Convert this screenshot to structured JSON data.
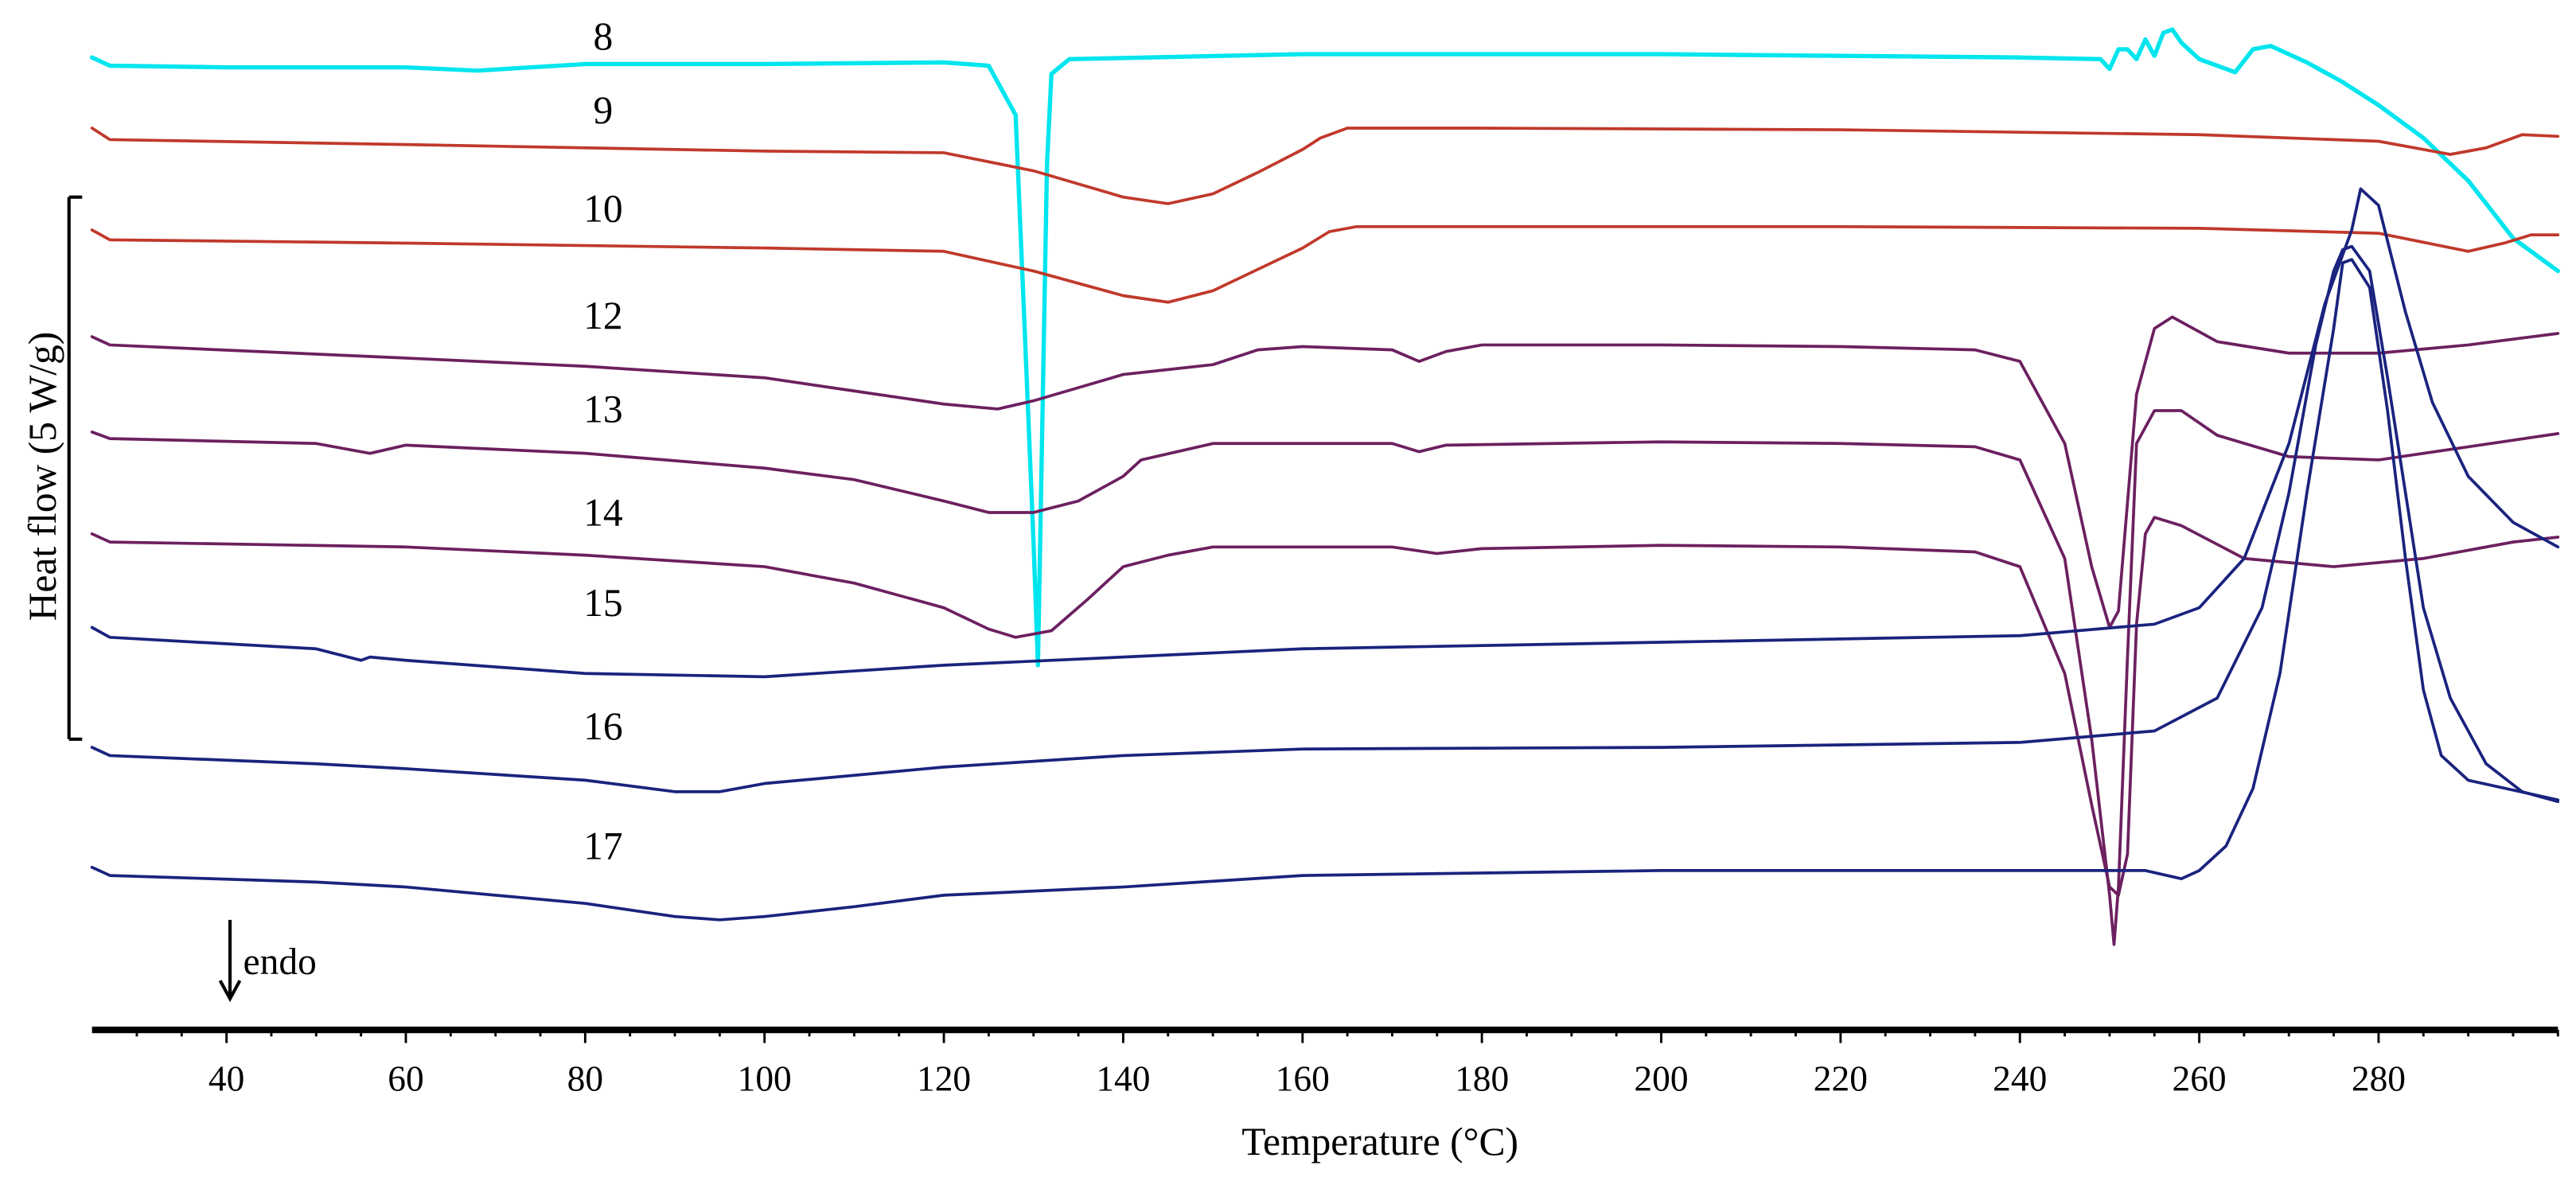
{
  "chart_data": {
    "type": "line",
    "title": "",
    "xlabel": "Temperature (°C)",
    "ylabel": "Heat flow (5 W/g)",
    "xlim": [
      25,
      300
    ],
    "x_ticks": [
      "40",
      "60",
      "80",
      "100",
      "120",
      "140",
      "160",
      "180",
      "200",
      "220",
      "240",
      "260",
      "280"
    ],
    "grid": false,
    "annotations": {
      "endo": "endo",
      "endo_direction": "down"
    },
    "series": [
      {
        "name": "8",
        "color": "#00e5ee",
        "offset": 40,
        "points": [
          [
            25,
            35
          ],
          [
            27,
            40
          ],
          [
            40,
            41
          ],
          [
            60,
            41
          ],
          [
            68,
            43
          ],
          [
            80,
            39
          ],
          [
            100,
            39
          ],
          [
            120,
            38
          ],
          [
            125,
            40
          ],
          [
            128,
            70
          ],
          [
            129,
            200
          ],
          [
            130,
            330
          ],
          [
            130.5,
            405
          ],
          [
            131,
            250
          ],
          [
            131.5,
            100
          ],
          [
            132,
            45
          ],
          [
            134,
            36
          ],
          [
            160,
            33
          ],
          [
            200,
            33
          ],
          [
            240,
            35
          ],
          [
            249,
            36
          ],
          [
            250,
            42
          ],
          [
            251,
            30
          ],
          [
            252,
            30
          ],
          [
            253,
            36
          ],
          [
            254,
            24
          ],
          [
            255,
            34
          ],
          [
            256,
            20
          ],
          [
            257,
            18
          ],
          [
            258,
            26
          ],
          [
            260,
            36
          ],
          [
            262,
            40
          ],
          [
            264,
            44
          ],
          [
            266,
            30
          ],
          [
            268,
            28
          ],
          [
            272,
            38
          ],
          [
            276,
            50
          ],
          [
            280,
            64
          ],
          [
            285,
            84
          ],
          [
            290,
            110
          ],
          [
            295,
            145
          ],
          [
            300,
            165
          ]
        ]
      },
      {
        "name": "9",
        "color": "#c0392b",
        "offset": 85,
        "points": [
          [
            25,
            78
          ],
          [
            27,
            85
          ],
          [
            60,
            88
          ],
          [
            100,
            92
          ],
          [
            120,
            93
          ],
          [
            130,
            104
          ],
          [
            140,
            120
          ],
          [
            145,
            124
          ],
          [
            150,
            118
          ],
          [
            155,
            105
          ],
          [
            160,
            91
          ],
          [
            162,
            84
          ],
          [
            165,
            78
          ],
          [
            180,
            78
          ],
          [
            220,
            79
          ],
          [
            260,
            82
          ],
          [
            280,
            86
          ],
          [
            288,
            94
          ],
          [
            292,
            90
          ],
          [
            296,
            82
          ],
          [
            300,
            83
          ]
        ]
      },
      {
        "name": "10",
        "color": "#c0392b",
        "offset": 145,
        "points": [
          [
            25,
            140
          ],
          [
            27,
            146
          ],
          [
            60,
            148
          ],
          [
            100,
            151
          ],
          [
            120,
            153
          ],
          [
            130,
            165
          ],
          [
            140,
            180
          ],
          [
            145,
            184
          ],
          [
            150,
            177
          ],
          [
            155,
            164
          ],
          [
            160,
            151
          ],
          [
            163,
            141
          ],
          [
            166,
            138
          ],
          [
            180,
            138
          ],
          [
            220,
            138
          ],
          [
            260,
            139
          ],
          [
            280,
            142
          ],
          [
            290,
            153
          ],
          [
            294,
            148
          ],
          [
            297,
            143
          ],
          [
            300,
            143
          ]
        ]
      },
      {
        "name": "12",
        "color": "#6c2060",
        "offset": 210,
        "points": [
          [
            25,
            205
          ],
          [
            27,
            210
          ],
          [
            60,
            218
          ],
          [
            80,
            223
          ],
          [
            100,
            230
          ],
          [
            110,
            238
          ],
          [
            120,
            246
          ],
          [
            126,
            249
          ],
          [
            130,
            244
          ],
          [
            135,
            236
          ],
          [
            140,
            228
          ],
          [
            145,
            225
          ],
          [
            150,
            222
          ],
          [
            155,
            213
          ],
          [
            160,
            211
          ],
          [
            170,
            213
          ],
          [
            173,
            220
          ],
          [
            176,
            214
          ],
          [
            180,
            210
          ],
          [
            200,
            210
          ],
          [
            220,
            211
          ],
          [
            235,
            213
          ],
          [
            240,
            220
          ],
          [
            245,
            270
          ],
          [
            248,
            345
          ],
          [
            250,
            382
          ],
          [
            251,
            372
          ],
          [
            253,
            240
          ],
          [
            255,
            200
          ],
          [
            257,
            193
          ],
          [
            262,
            208
          ],
          [
            270,
            215
          ],
          [
            280,
            215
          ],
          [
            290,
            210
          ],
          [
            300,
            203
          ]
        ]
      },
      {
        "name": "13",
        "color": "#6c2060",
        "offset": 267,
        "points": [
          [
            25,
            263
          ],
          [
            27,
            267
          ],
          [
            50,
            270
          ],
          [
            56,
            276
          ],
          [
            60,
            271
          ],
          [
            80,
            276
          ],
          [
            100,
            285
          ],
          [
            110,
            292
          ],
          [
            120,
            305
          ],
          [
            125,
            312
          ],
          [
            130,
            312
          ],
          [
            135,
            305
          ],
          [
            140,
            290
          ],
          [
            142,
            280
          ],
          [
            150,
            270
          ],
          [
            170,
            270
          ],
          [
            173,
            275
          ],
          [
            176,
            271
          ],
          [
            200,
            269
          ],
          [
            220,
            270
          ],
          [
            235,
            272
          ],
          [
            240,
            280
          ],
          [
            245,
            340
          ],
          [
            248,
            450
          ],
          [
            250,
            545
          ],
          [
            250.5,
            575
          ],
          [
            251,
            540
          ],
          [
            252,
            400
          ],
          [
            253,
            270
          ],
          [
            255,
            250
          ],
          [
            258,
            250
          ],
          [
            262,
            265
          ],
          [
            270,
            278
          ],
          [
            280,
            280
          ],
          [
            290,
            272
          ],
          [
            300,
            264
          ]
        ]
      },
      {
        "name": "14",
        "color": "#6c2060",
        "offset": 330,
        "points": [
          [
            25,
            325
          ],
          [
            27,
            330
          ],
          [
            60,
            333
          ],
          [
            80,
            338
          ],
          [
            100,
            345
          ],
          [
            110,
            355
          ],
          [
            120,
            370
          ],
          [
            125,
            383
          ],
          [
            128,
            388
          ],
          [
            132,
            384
          ],
          [
            136,
            365
          ],
          [
            140,
            345
          ],
          [
            145,
            338
          ],
          [
            150,
            333
          ],
          [
            170,
            333
          ],
          [
            175,
            337
          ],
          [
            180,
            334
          ],
          [
            200,
            332
          ],
          [
            220,
            333
          ],
          [
            235,
            336
          ],
          [
            240,
            345
          ],
          [
            245,
            410
          ],
          [
            248,
            490
          ],
          [
            250,
            540
          ],
          [
            251,
            545
          ],
          [
            252,
            520
          ],
          [
            253,
            380
          ],
          [
            254,
            325
          ],
          [
            255,
            315
          ],
          [
            258,
            320
          ],
          [
            265,
            340
          ],
          [
            275,
            345
          ],
          [
            285,
            340
          ],
          [
            295,
            330
          ],
          [
            300,
            327
          ]
        ]
      },
      {
        "name": "15",
        "color": "#1a237e",
        "offset": 385,
        "points": [
          [
            25,
            382
          ],
          [
            27,
            388
          ],
          [
            50,
            395
          ],
          [
            55,
            402
          ],
          [
            56,
            400
          ],
          [
            60,
            402
          ],
          [
            80,
            410
          ],
          [
            100,
            412
          ],
          [
            120,
            405
          ],
          [
            140,
            400
          ],
          [
            160,
            395
          ],
          [
            200,
            391
          ],
          [
            240,
            387
          ],
          [
            255,
            380
          ],
          [
            260,
            370
          ],
          [
            265,
            340
          ],
          [
            270,
            270
          ],
          [
            274,
            185
          ],
          [
            277,
            140
          ],
          [
            278,
            115
          ],
          [
            280,
            125
          ],
          [
            283,
            190
          ],
          [
            286,
            245
          ],
          [
            290,
            290
          ],
          [
            295,
            318
          ],
          [
            300,
            333
          ]
        ]
      },
      {
        "name": "16",
        "color": "#1a237e",
        "offset": 460,
        "points": [
          [
            25,
            455
          ],
          [
            27,
            460
          ],
          [
            50,
            465
          ],
          [
            60,
            468
          ],
          [
            80,
            475
          ],
          [
            90,
            482
          ],
          [
            95,
            482
          ],
          [
            100,
            477
          ],
          [
            120,
            467
          ],
          [
            140,
            460
          ],
          [
            160,
            456
          ],
          [
            200,
            455
          ],
          [
            240,
            452
          ],
          [
            255,
            445
          ],
          [
            262,
            425
          ],
          [
            267,
            370
          ],
          [
            270,
            300
          ],
          [
            273,
            210
          ],
          [
            275,
            165
          ],
          [
            276,
            152
          ],
          [
            277,
            150
          ],
          [
            279,
            165
          ],
          [
            281,
            230
          ],
          [
            283,
            300
          ],
          [
            285,
            370
          ],
          [
            288,
            425
          ],
          [
            292,
            465
          ],
          [
            296,
            482
          ],
          [
            300,
            488
          ]
        ]
      },
      {
        "name": "17",
        "color": "#1a237e",
        "offset": 533,
        "points": [
          [
            25,
            528
          ],
          [
            27,
            533
          ],
          [
            50,
            537
          ],
          [
            60,
            540
          ],
          [
            80,
            550
          ],
          [
            90,
            558
          ],
          [
            95,
            560
          ],
          [
            100,
            558
          ],
          [
            110,
            552
          ],
          [
            120,
            545
          ],
          [
            140,
            540
          ],
          [
            160,
            533
          ],
          [
            200,
            530
          ],
          [
            240,
            530
          ],
          [
            250,
            530
          ],
          [
            254,
            530
          ],
          [
            258,
            535
          ],
          [
            260,
            530
          ],
          [
            263,
            515
          ],
          [
            266,
            480
          ],
          [
            269,
            410
          ],
          [
            272,
            300
          ],
          [
            275,
            200
          ],
          [
            276,
            160
          ],
          [
            277,
            158
          ],
          [
            279,
            175
          ],
          [
            281,
            250
          ],
          [
            283,
            340
          ],
          [
            285,
            420
          ],
          [
            287,
            460
          ],
          [
            290,
            475
          ],
          [
            300,
            487
          ]
        ]
      }
    ]
  }
}
